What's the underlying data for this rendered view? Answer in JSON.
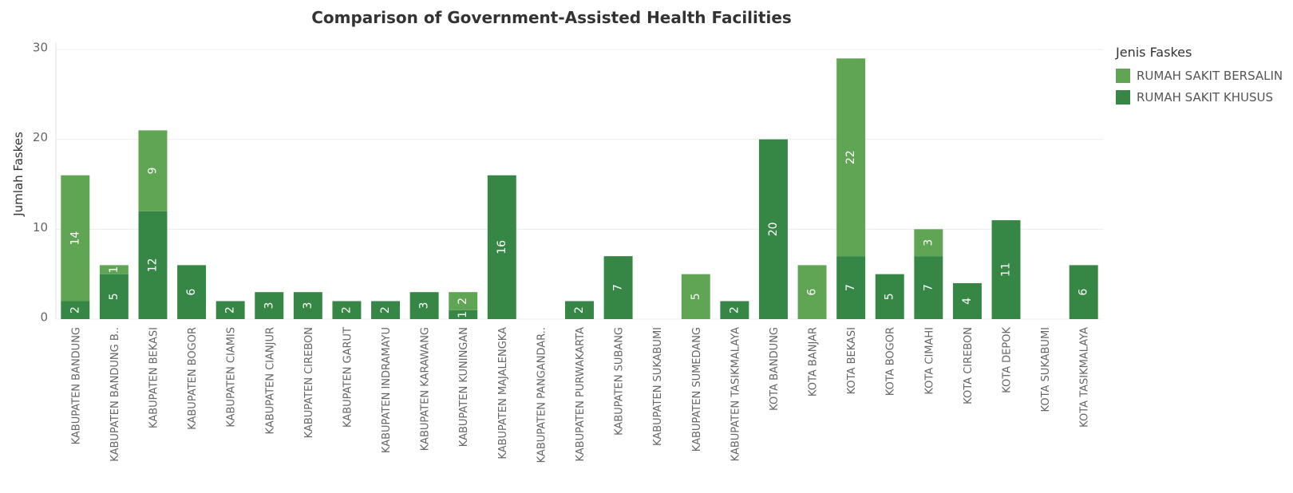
{
  "legend": {
    "title": "Jenis Faskes",
    "items": [
      {
        "label": "RUMAH SAKIT BERSALIN",
        "color": "#5fa553"
      },
      {
        "label": "RUMAH SAKIT KHUSUS",
        "color": "#368746"
      }
    ]
  },
  "chart_data": {
    "type": "bar",
    "stacked": true,
    "title": "Comparison of Government-Assisted Health Facilities",
    "xlabel": "",
    "ylabel": "Jumlah Faskes",
    "ylim": [
      0,
      30
    ],
    "yticks": [
      0,
      10,
      20,
      30
    ],
    "grid": true,
    "legend_position": "right",
    "categories": [
      "KABUPATEN BANDUNG",
      "KABUPATEN BANDUNG B..",
      "KABUPATEN BEKASI",
      "KABUPATEN BOGOR",
      "KABUPATEN CIAMIS",
      "KABUPATEN CIANJUR",
      "KABUPATEN CIREBON",
      "KABUPATEN GARUT",
      "KABUPATEN INDRAMAYU",
      "KABUPATEN KARAWANG",
      "KABUPATEN KUNINGAN",
      "KABUPATEN MAJALENGKA",
      "KABUPATEN PANGANDAR..",
      "KABUPATEN PURWAKARTA",
      "KABUPATEN SUBANG",
      "KABUPATEN SUKABUMI",
      "KABUPATEN SUMEDANG",
      "KABUPATEN TASIKMALAYA",
      "KOTA BANDUNG",
      "KOTA BANJAR",
      "KOTA BEKASI",
      "KOTA BOGOR",
      "KOTA CIMAHI",
      "KOTA CIREBON",
      "KOTA DEPOK",
      "KOTA SUKABUMI",
      "KOTA TASIKMALAYA"
    ],
    "series": [
      {
        "name": "RUMAH SAKIT KHUSUS",
        "color": "#368746",
        "values": [
          2,
          5,
          12,
          6,
          2,
          3,
          3,
          2,
          2,
          3,
          1,
          16,
          0,
          2,
          7,
          0,
          0,
          2,
          20,
          0,
          7,
          5,
          7,
          4,
          11,
          0,
          6
        ]
      },
      {
        "name": "RUMAH SAKIT BERSALIN",
        "color": "#5fa553",
        "values": [
          14,
          1,
          9,
          0,
          0,
          0,
          0,
          0,
          0,
          0,
          2,
          0,
          0,
          0,
          0,
          0,
          5,
          0,
          0,
          6,
          22,
          0,
          3,
          0,
          0,
          0,
          0
        ]
      }
    ]
  }
}
